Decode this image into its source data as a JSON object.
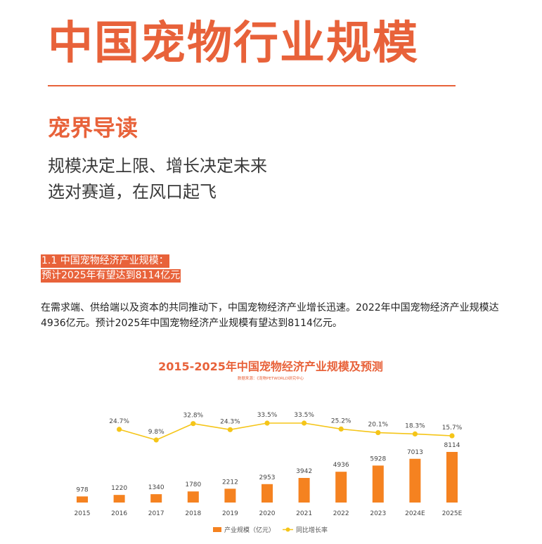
{
  "page": {
    "title": "中国宠物行业规模",
    "sub_heading": "宠界导读",
    "tagline_lines": [
      "规模决定上限、增长决定未来",
      "选对赛道，在风口起飞"
    ]
  },
  "section": {
    "heading_lines": [
      "1.1 中国宠物经济产业规模：",
      "预计2025年有望达到8114亿元"
    ],
    "body": "在需求端、供给端以及资本的共同推动下，中国宠物经济产业增长迅速。2022年中国宠物经济产业规模达4936亿元。预计2025年中国宠物经济产业规模有望达到8114亿元。"
  },
  "colors": {
    "accent": "#e8623a",
    "bar": "#f58220",
    "line": "#f5c518"
  },
  "chart_data": {
    "type": "bar",
    "title": "2015-2025年中国宠物经济产业规模及预测",
    "source": "数据来源：《宠物PETWORLD研究中心",
    "categories": [
      "2015",
      "2016",
      "2017",
      "2018",
      "2019",
      "2020",
      "2021",
      "2022",
      "2023",
      "2024E",
      "2025E"
    ],
    "series": [
      {
        "name": "产业规模（亿元）",
        "type": "bar",
        "values": [
          978,
          1220,
          1340,
          1780,
          2212,
          2953,
          3942,
          4936,
          5928,
          7013,
          8114
        ]
      },
      {
        "name": "同比增长率",
        "type": "line",
        "values": [
          null,
          24.7,
          9.8,
          32.8,
          24.3,
          33.5,
          33.5,
          25.2,
          20.1,
          18.3,
          15.7
        ],
        "labels": [
          "",
          "24.7%",
          "9.8%",
          "32.8%",
          "24.3%",
          "33.5%",
          "33.5%",
          "25.2%",
          "20.1%",
          "18.3%",
          "15.7%"
        ]
      }
    ],
    "legend_position": "bottom",
    "grid": false
  }
}
